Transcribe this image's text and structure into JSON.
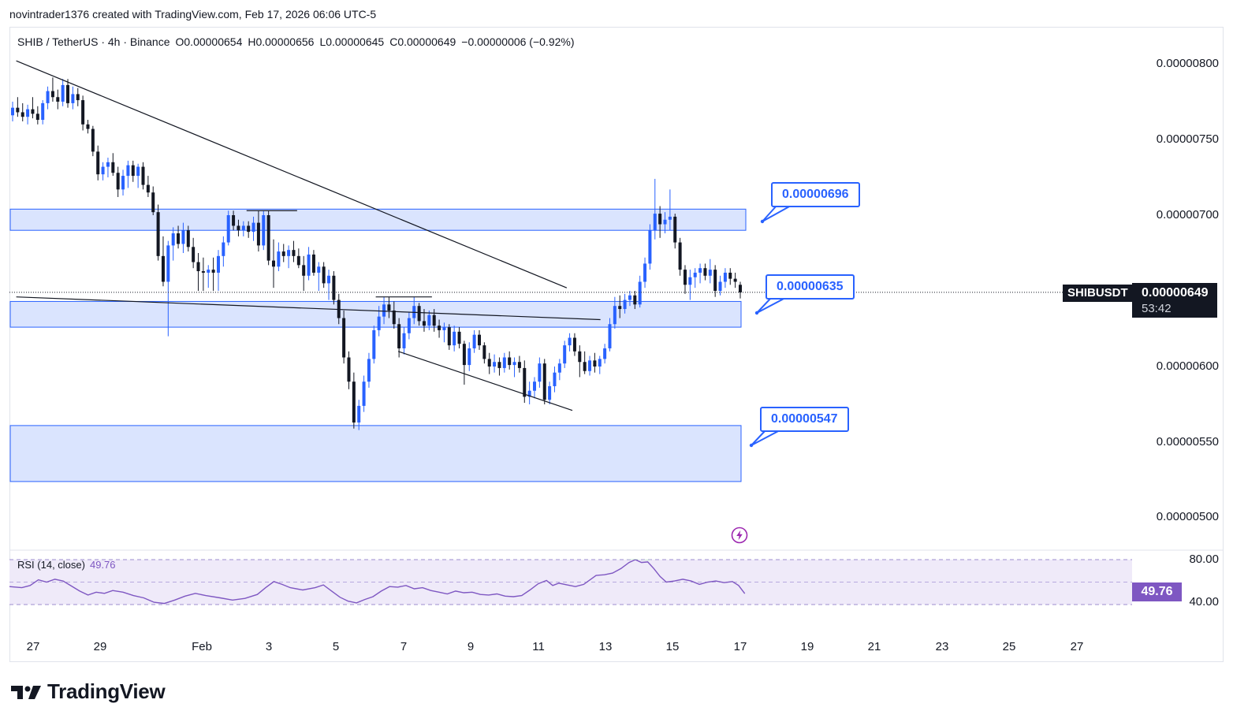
{
  "header": {
    "credit": "novintrader1376 created with TradingView.com, Feb 17, 2026 06:06 UTC-5"
  },
  "legend": {
    "symbol": "SHIB / TetherUS · 4h · Binance",
    "open": "O0.00000654",
    "high": "H0.00000656",
    "low": "L0.00000645",
    "close": "C0.00000649",
    "change": "−0.00000006 (−0.92%)"
  },
  "price_axis": {
    "labels": [
      "0.00000800",
      "0.00000750",
      "0.00000700",
      "0.00000600",
      "0.00000550",
      "0.00000500"
    ]
  },
  "current": {
    "symbol": "SHIBUSDT",
    "price": "0.00000649",
    "countdown": "53:42"
  },
  "callouts": {
    "upper": "0.00000696",
    "middle": "0.00000635",
    "lower": "0.00000547"
  },
  "rsi": {
    "title": "RSI (14, close)",
    "value": "49.76",
    "upper_label": "80.00",
    "lower_label": "40.00",
    "tag": "49.76"
  },
  "time_axis": {
    "labels": [
      "27",
      "29",
      "Feb",
      "3",
      "5",
      "7",
      "9",
      "11",
      "13",
      "15",
      "17",
      "19",
      "21",
      "23",
      "25",
      "27"
    ]
  },
  "brand": {
    "name": "TradingView"
  },
  "colors": {
    "up": "#2962ff",
    "down": "#131722",
    "zone_fill": "#d4dffe",
    "zone_border": "#2962ff",
    "rsi_line": "#7e57c2",
    "rsi_band": "#efeaf9"
  },
  "chart_data": {
    "type": "candlestick",
    "title": "SHIB / TetherUS · 4h · Binance",
    "ylim": [
      4.78e-06,
      8.15e-06
    ],
    "x_range": [
      "2026-01-26",
      "2026-02-28"
    ],
    "zones": [
      {
        "low": 6.9e-06,
        "high": 7.04e-06
      },
      {
        "low": 6.26e-06,
        "high": 6.43e-06
      },
      {
        "low": 5.24e-06,
        "high": 5.61e-06
      }
    ],
    "trendlines": [
      {
        "from": [
          "2026-01-26 12:00",
          8.02e-06
        ],
        "to": [
          "2026-02-11 20:00",
          6.52e-06
        ]
      },
      {
        "from": [
          "2026-01-26 12:00",
          6.46e-06
        ],
        "to": [
          "2026-02-12 20:00",
          6.31e-06
        ]
      },
      {
        "from": [
          "2026-02-06 20:00",
          6.1e-06
        ],
        "to": [
          "2026-02-12 00:00",
          5.71e-06
        ]
      }
    ],
    "levels": [
      {
        "from": "2026-02-02 08:00",
        "to": "2026-02-03 20:00",
        "value": 7.03e-06
      },
      {
        "from": "2026-02-06 04:00",
        "to": "2026-02-07 20:00",
        "value": 6.46e-06
      }
    ],
    "candles": [
      [
        7.66e-06,
        7.75e-06,
        7.62e-06,
        7.71e-06
      ],
      [
        7.71e-06,
        7.78e-06,
        7.65e-06,
        7.68e-06
      ],
      [
        7.68e-06,
        7.74e-06,
        7.62e-06,
        7.65e-06
      ],
      [
        7.65e-06,
        7.73e-06,
        7.6e-06,
        7.7e-06
      ],
      [
        7.7e-06,
        7.78e-06,
        7.64e-06,
        7.67e-06
      ],
      [
        7.67e-06,
        7.72e-06,
        7.6e-06,
        7.63e-06
      ],
      [
        7.63e-06,
        7.76e-06,
        7.6e-06,
        7.74e-06
      ],
      [
        7.74e-06,
        7.85e-06,
        7.7e-06,
        7.82e-06
      ],
      [
        7.82e-06,
        7.91e-06,
        7.75e-06,
        7.78e-06
      ],
      [
        7.78e-06,
        7.83e-06,
        7.7e-06,
        7.75e-06
      ],
      [
        7.75e-06,
        7.9e-06,
        7.72e-06,
        7.86e-06
      ],
      [
        7.86e-06,
        7.9e-06,
        7.71e-06,
        7.74e-06
      ],
      [
        7.74e-06,
        7.85e-06,
        7.7e-06,
        7.8e-06
      ],
      [
        7.8e-06,
        7.84e-06,
        7.72e-06,
        7.76e-06
      ],
      [
        7.76e-06,
        7.79e-06,
        7.56e-06,
        7.6e-06
      ],
      [
        7.6e-06,
        7.63e-06,
        7.54e-06,
        7.57e-06
      ],
      [
        7.57e-06,
        7.59e-06,
        7.39e-06,
        7.42e-06
      ],
      [
        7.42e-06,
        7.46e-06,
        7.23e-06,
        7.27e-06
      ],
      [
        7.27e-06,
        7.35e-06,
        7.23e-06,
        7.32e-06
      ],
      [
        7.32e-06,
        7.38e-06,
        7.25e-06,
        7.35e-06
      ],
      [
        7.35e-06,
        7.41e-06,
        7.26e-06,
        7.28e-06
      ],
      [
        7.28e-06,
        7.32e-06,
        7.12e-06,
        7.17e-06
      ],
      [
        7.17e-06,
        7.3e-06,
        7.13e-06,
        7.26e-06
      ],
      [
        7.26e-06,
        7.36e-06,
        7.18e-06,
        7.33e-06
      ],
      [
        7.33e-06,
        7.36e-06,
        7.22e-06,
        7.26e-06
      ],
      [
        7.26e-06,
        7.34e-06,
        7.18e-06,
        7.32e-06
      ],
      [
        7.32e-06,
        7.35e-06,
        7.17e-06,
        7.2e-06
      ],
      [
        7.2e-06,
        7.26e-06,
        7.12e-06,
        7.15e-06
      ],
      [
        7.15e-06,
        7.19e-06,
        7e-06,
        7.02e-06
      ],
      [
        7.02e-06,
        7.07e-06,
        6.7e-06,
        6.73e-06
      ],
      [
        6.73e-06,
        6.86e-06,
        6.53e-06,
        6.56e-06
      ],
      [
        6.56e-06,
        6.83e-06,
        6.2e-06,
        6.8e-06
      ],
      [
        6.8e-06,
        6.92e-06,
        6.7e-06,
        6.88e-06
      ],
      [
        6.88e-06,
        6.93e-06,
        6.78e-06,
        6.81e-06
      ],
      [
        6.81e-06,
        6.95e-06,
        6.75e-06,
        6.9e-06
      ],
      [
        6.9e-06,
        6.93e-06,
        6.76e-06,
        6.79e-06
      ],
      [
        6.79e-06,
        6.85e-06,
        6.65e-06,
        6.69e-06
      ],
      [
        6.69e-06,
        6.75e-06,
        6.5e-06,
        6.63e-06
      ],
      [
        6.63e-06,
        6.72e-06,
        6.5e-06,
        6.62e-06
      ],
      [
        6.62e-06,
        6.67e-06,
        6.52e-06,
        6.64e-06
      ],
      [
        6.64e-06,
        6.72e-06,
        6.5e-06,
        6.62e-06
      ],
      [
        6.62e-06,
        6.77e-06,
        6.5e-06,
        6.73e-06
      ],
      [
        6.73e-06,
        6.86e-06,
        6.66e-06,
        6.82e-06
      ],
      [
        6.82e-06,
        7.03e-06,
        6.8e-06,
        7e-06
      ],
      [
        7e-06,
        7.03e-06,
        6.9e-06,
        6.93e-06
      ],
      [
        6.93e-06,
        6.97e-06,
        6.86e-06,
        6.9e-06
      ],
      [
        6.9e-06,
        6.96e-06,
        6.86e-06,
        6.93e-06
      ],
      [
        6.93e-06,
        6.96e-06,
        6.85e-06,
        6.89e-06
      ],
      [
        6.89e-06,
        6.99e-06,
        6.83e-06,
        6.95e-06
      ],
      [
        6.95e-06,
        7.03e-06,
        6.76e-06,
        6.8e-06
      ],
      [
        6.8e-06,
        7.03e-06,
        6.77e-06,
        7e-06
      ],
      [
        7e-06,
        7.03e-06,
        6.67e-06,
        6.7e-06
      ],
      [
        6.7e-06,
        6.84e-06,
        6.52e-06,
        6.66e-06
      ],
      [
        6.66e-06,
        6.82e-06,
        6.63e-06,
        6.76e-06
      ],
      [
        6.76e-06,
        6.81e-06,
        6.69e-06,
        6.73e-06
      ],
      [
        6.73e-06,
        6.8e-06,
        6.65e-06,
        6.77e-06
      ],
      [
        6.77e-06,
        6.83e-06,
        6.69e-06,
        6.73e-06
      ],
      [
        6.73e-06,
        6.78e-06,
        6.65e-06,
        6.67e-06
      ],
      [
        6.67e-06,
        6.73e-06,
        6.5e-06,
        6.6e-06
      ],
      [
        6.6e-06,
        6.79e-06,
        6.57e-06,
        6.74e-06
      ],
      [
        6.74e-06,
        6.77e-06,
        6.6e-06,
        6.62e-06
      ],
      [
        6.62e-06,
        6.69e-06,
        6.5e-06,
        6.66e-06
      ],
      [
        6.66e-06,
        6.69e-06,
        6.52e-06,
        6.55e-06
      ],
      [
        6.55e-06,
        6.64e-06,
        6.44e-06,
        6.6e-06
      ],
      [
        6.6e-06,
        6.63e-06,
        6.41e-06,
        6.44e-06
      ],
      [
        6.44e-06,
        6.48e-06,
        6.28e-06,
        6.32e-06
      ],
      [
        6.32e-06,
        6.37e-06,
        6.02e-06,
        6.06e-06
      ],
      [
        6.06e-06,
        6.1e-06,
        5.85e-06,
        5.9e-06
      ],
      [
        5.9e-06,
        5.96e-06,
        5.59e-06,
        5.63e-06
      ],
      [
        5.63e-06,
        5.78e-06,
        5.58e-06,
        5.74e-06
      ],
      [
        5.74e-06,
        5.94e-06,
        5.7e-06,
        5.9e-06
      ],
      [
        5.9e-06,
        6.09e-06,
        5.86e-06,
        6.05e-06
      ],
      [
        6.05e-06,
        6.27e-06,
        6.02e-06,
        6.24e-06
      ],
      [
        6.24e-06,
        6.4e-06,
        6.2e-06,
        6.33e-06
      ],
      [
        6.33e-06,
        6.46e-06,
        6.28e-06,
        6.41e-06
      ],
      [
        6.41e-06,
        6.46e-06,
        6.32e-06,
        6.37e-06
      ],
      [
        6.37e-06,
        6.43e-06,
        6.25e-06,
        6.28e-06
      ],
      [
        6.28e-06,
        6.32e-06,
        6.06e-06,
        6.12e-06
      ],
      [
        6.12e-06,
        6.26e-06,
        6.08e-06,
        6.22e-06
      ],
      [
        6.22e-06,
        6.36e-06,
        6.18e-06,
        6.32e-06
      ],
      [
        6.32e-06,
        6.46e-06,
        6.28e-06,
        6.4e-06
      ],
      [
        6.4e-06,
        6.42e-06,
        6.27e-06,
        6.3e-06
      ],
      [
        6.3e-06,
        6.38e-06,
        6.23e-06,
        6.27e-06
      ],
      [
        6.27e-06,
        6.37e-06,
        6.24e-06,
        6.34e-06
      ],
      [
        6.34e-06,
        6.38e-06,
        6.23e-06,
        6.27e-06
      ],
      [
        6.27e-06,
        6.31e-06,
        6.19e-06,
        6.24e-06
      ],
      [
        6.24e-06,
        6.29e-06,
        6.16e-06,
        6.26e-06
      ],
      [
        6.26e-06,
        6.28e-06,
        6.11e-06,
        6.14e-06
      ],
      [
        6.14e-06,
        6.27e-06,
        6.1e-06,
        6.23e-06
      ],
      [
        6.23e-06,
        6.26e-06,
        6.12e-06,
        6.15e-06
      ],
      [
        6.15e-06,
        6.17e-06,
        5.88e-06,
        6.01e-06
      ],
      [
        6.01e-06,
        6.16e-06,
        5.97e-06,
        6.12e-06
      ],
      [
        6.12e-06,
        6.24e-06,
        6.09e-06,
        6.21e-06
      ],
      [
        6.21e-06,
        6.24e-06,
        6.11e-06,
        6.14e-06
      ],
      [
        6.14e-06,
        6.16e-06,
        6.02e-06,
        6.05e-06
      ],
      [
        6.05e-06,
        6.09e-06,
        5.95e-06,
        6e-06
      ],
      [
        6e-06,
        6.08e-06,
        5.96e-06,
        6.03e-06
      ],
      [
        6.03e-06,
        6.06e-06,
        5.94e-06,
        5.99e-06
      ],
      [
        5.99e-06,
        6.09e-06,
        5.96e-06,
        6.06e-06
      ],
      [
        6.06e-06,
        6.1e-06,
        5.98e-06,
        6.01e-06
      ],
      [
        6.01e-06,
        6.06e-06,
        5.93e-06,
        6.03e-06
      ],
      [
        6.03e-06,
        6.07e-06,
        5.96e-06,
        5.99e-06
      ],
      [
        5.99e-06,
        6.04e-06,
        5.76e-06,
        5.8e-06
      ],
      [
        5.8e-06,
        5.9e-06,
        5.75e-06,
        5.84e-06
      ],
      [
        5.84e-06,
        5.93e-06,
        5.79e-06,
        5.9e-06
      ],
      [
        5.9e-06,
        6.06e-06,
        5.86e-06,
        6.02e-06
      ],
      [
        6.02e-06,
        6.05e-06,
        5.75e-06,
        5.78e-06
      ],
      [
        5.78e-06,
        5.9e-06,
        5.75e-06,
        5.87e-06
      ],
      [
        5.87e-06,
        6e-06,
        5.83e-06,
        5.96e-06
      ],
      [
        5.96e-06,
        6.05e-06,
        5.91e-06,
        6.02e-06
      ],
      [
        6.02e-06,
        6.17e-06,
        5.99e-06,
        6.14e-06
      ],
      [
        6.14e-06,
        6.22e-06,
        6.1e-06,
        6.19e-06
      ],
      [
        6.19e-06,
        6.22e-06,
        6.07e-06,
        6.1e-06
      ],
      [
        6.1e-06,
        6.14e-06,
        5.93e-06,
        6.03e-06
      ],
      [
        6.03e-06,
        6.1e-06,
        5.95e-06,
        5.97e-06
      ],
      [
        5.97e-06,
        6.07e-06,
        5.94e-06,
        6.04e-06
      ],
      [
        6.04e-06,
        6.09e-06,
        5.96e-06,
        6e-06
      ],
      [
        6e-06,
        6.07e-06,
        5.95e-06,
        6.05e-06
      ],
      [
        6.05e-06,
        6.15e-06,
        6.02e-06,
        6.12e-06
      ],
      [
        6.12e-06,
        6.32e-06,
        6.1e-06,
        6.28e-06
      ],
      [
        6.28e-06,
        6.46e-06,
        6.25e-06,
        6.4e-06
      ],
      [
        6.4e-06,
        6.47e-06,
        6.32e-06,
        6.38e-06
      ],
      [
        6.38e-06,
        6.48e-06,
        6.35e-06,
        6.44e-06
      ],
      [
        6.44e-06,
        6.5e-06,
        6.4e-06,
        6.47e-06
      ],
      [
        6.47e-06,
        6.5e-06,
        6.38e-06,
        6.41e-06
      ],
      [
        6.41e-06,
        6.6e-06,
        6.39e-06,
        6.56e-06
      ],
      [
        6.56e-06,
        6.72e-06,
        6.52e-06,
        6.68e-06
      ],
      [
        6.68e-06,
        6.94e-06,
        6.64e-06,
        6.9e-06
      ],
      [
        6.9e-06,
        7.24e-06,
        6.84e-06,
        7.01e-06
      ],
      [
        7.01e-06,
        7.06e-06,
        6.85e-06,
        6.94e-06
      ],
      [
        6.94e-06,
        7.02e-06,
        6.88e-06,
        6.97e-06
      ],
      [
        6.97e-06,
        7.17e-06,
        6.9e-06,
        6.99e-06
      ],
      [
        6.99e-06,
        7.01e-06,
        6.78e-06,
        6.82e-06
      ],
      [
        6.82e-06,
        6.85e-06,
        6.6e-06,
        6.64e-06
      ],
      [
        6.64e-06,
        6.67e-06,
        6.48e-06,
        6.54e-06
      ],
      [
        6.54e-06,
        6.64e-06,
        6.44e-06,
        6.59e-06
      ],
      [
        6.59e-06,
        6.65e-06,
        6.52e-06,
        6.62e-06
      ],
      [
        6.62e-06,
        6.68e-06,
        6.55e-06,
        6.65e-06
      ],
      [
        6.65e-06,
        6.68e-06,
        6.57e-06,
        6.6e-06
      ],
      [
        6.6e-06,
        6.71e-06,
        6.55e-06,
        6.64e-06
      ],
      [
        6.64e-06,
        6.67e-06,
        6.46e-06,
        6.5e-06
      ],
      [
        6.5e-06,
        6.6e-06,
        6.47e-06,
        6.56e-06
      ],
      [
        6.56e-06,
        6.65e-06,
        6.52e-06,
        6.62e-06
      ],
      [
        6.62e-06,
        6.65e-06,
        6.54e-06,
        6.58e-06
      ],
      [
        6.58e-06,
        6.62e-06,
        6.52e-06,
        6.56e-06
      ],
      [
        6.54e-06,
        6.56e-06,
        6.45e-06,
        6.49e-06
      ]
    ],
    "rsi_series": [
      [
        0.0,
        56.0
      ],
      [
        0.6,
        55.0
      ],
      [
        1.0,
        57.0
      ],
      [
        1.4,
        62.0
      ],
      [
        1.8,
        60.0
      ],
      [
        2.2,
        62.5
      ],
      [
        2.6,
        61.0
      ],
      [
        3.0,
        56.5
      ],
      [
        3.4,
        52.0
      ],
      [
        3.8,
        48.5
      ],
      [
        4.2,
        51.0
      ],
      [
        4.6,
        50.0
      ],
      [
        5.0,
        52.5
      ],
      [
        5.5,
        51.0
      ],
      [
        6.0,
        48.0
      ],
      [
        6.5,
        46.0
      ],
      [
        7.0,
        42.0
      ],
      [
        7.5,
        41.0
      ],
      [
        8.0,
        44.0
      ],
      [
        8.5,
        47.5
      ],
      [
        9.0,
        50.0
      ],
      [
        9.5,
        48.0
      ],
      [
        10.2,
        46.0
      ],
      [
        10.8,
        44.0
      ],
      [
        11.4,
        45.5
      ],
      [
        12.0,
        49.0
      ],
      [
        12.4,
        55.0
      ],
      [
        12.8,
        60.5
      ],
      [
        13.2,
        58.0
      ],
      [
        13.6,
        55.0
      ],
      [
        14.2,
        53.0
      ],
      [
        14.8,
        55.0
      ],
      [
        15.2,
        57.5
      ],
      [
        15.6,
        52.0
      ],
      [
        16.0,
        46.5
      ],
      [
        16.4,
        43.0
      ],
      [
        16.8,
        41.5
      ],
      [
        17.2,
        44.5
      ],
      [
        17.6,
        47.0
      ],
      [
        18.0,
        52.0
      ],
      [
        18.4,
        56.0
      ],
      [
        18.8,
        55.5
      ],
      [
        19.2,
        57.0
      ],
      [
        19.6,
        54.0
      ],
      [
        20.0,
        55.0
      ],
      [
        20.4,
        52.5
      ],
      [
        20.8,
        51.0
      ],
      [
        21.2,
        49.5
      ],
      [
        21.6,
        52.0
      ],
      [
        22.0,
        50.5
      ],
      [
        22.4,
        51.0
      ],
      [
        22.8,
        49.0
      ],
      [
        23.2,
        48.5
      ],
      [
        23.6,
        49.5
      ],
      [
        24.0,
        47.5
      ],
      [
        24.4,
        47.0
      ],
      [
        24.8,
        48.0
      ],
      [
        25.2,
        53.0
      ],
      [
        25.6,
        58.5
      ],
      [
        26.0,
        61.5
      ],
      [
        26.3,
        57.0
      ],
      [
        26.6,
        59.0
      ],
      [
        27.0,
        57.5
      ],
      [
        27.4,
        56.0
      ],
      [
        27.8,
        58.0
      ],
      [
        28.4,
        66.0
      ],
      [
        28.8,
        66.5
      ],
      [
        29.2,
        68.0
      ],
      [
        29.6,
        72.0
      ],
      [
        30.0,
        77.5
      ],
      [
        30.3,
        80.0
      ],
      [
        30.6,
        77.5
      ],
      [
        30.9,
        78.0
      ],
      [
        31.2,
        72.0
      ],
      [
        31.5,
        65.0
      ],
      [
        31.8,
        60.0
      ],
      [
        32.2,
        61.0
      ],
      [
        32.6,
        62.5
      ],
      [
        33.0,
        61.0
      ],
      [
        33.4,
        58.0
      ],
      [
        33.8,
        60.0
      ],
      [
        34.2,
        61.0
      ],
      [
        34.6,
        59.5
      ],
      [
        35.0,
        60.5
      ],
      [
        35.3,
        57.0
      ],
      [
        35.6,
        49.76
      ]
    ]
  }
}
